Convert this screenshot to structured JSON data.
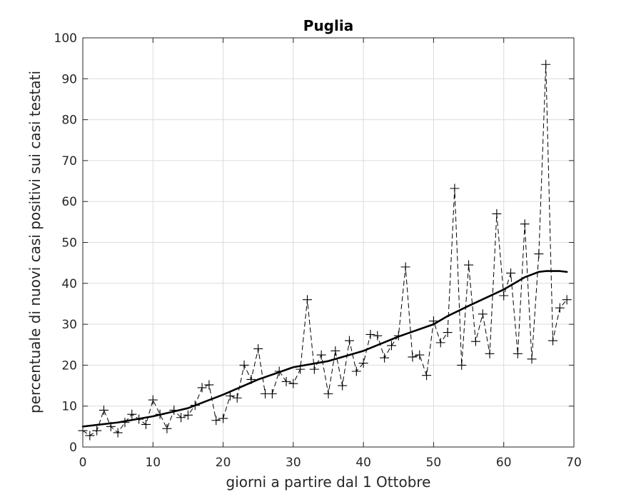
{
  "chart_data": {
    "type": "line",
    "title": "Puglia",
    "xlabel": "giorni a partire dal 1 Ottobre",
    "ylabel": "percentuale di nuovi casi positivi sui casi testati",
    "xlim": [
      0,
      70
    ],
    "ylim": [
      0,
      100
    ],
    "xticks": [
      0,
      10,
      20,
      30,
      40,
      50,
      60,
      70
    ],
    "yticks": [
      0,
      10,
      20,
      30,
      40,
      50,
      60,
      70,
      80,
      90,
      100
    ],
    "grid": true,
    "legend": "none",
    "series": [
      {
        "style": "dashed-with-plus-markers",
        "color": "#000000",
        "x": [
          0,
          1,
          2,
          3,
          4,
          5,
          6,
          7,
          8,
          9,
          10,
          11,
          12,
          13,
          14,
          15,
          16,
          17,
          18,
          19,
          20,
          21,
          22,
          23,
          24,
          25,
          26,
          27,
          28,
          29,
          30,
          31,
          32,
          33,
          34,
          35,
          36,
          37,
          38,
          39,
          40,
          41,
          42,
          43,
          44,
          45,
          46,
          47,
          48,
          49,
          50,
          51,
          52,
          53,
          54,
          55,
          56,
          57,
          58,
          59,
          60,
          61,
          62,
          63,
          64,
          65,
          66,
          67,
          68,
          69
        ],
        "y": [
          4,
          2.8,
          4,
          9,
          5,
          3.5,
          6,
          8,
          6.8,
          5.5,
          11.5,
          8,
          4.5,
          9,
          7.2,
          7.8,
          10.2,
          14.5,
          15.2,
          6.5,
          7,
          12.5,
          12,
          20,
          16.5,
          24,
          13,
          13,
          18.5,
          16,
          15.5,
          19,
          36,
          19,
          22.5,
          13,
          23.5,
          15,
          26,
          18.5,
          20.5,
          27.5,
          27.2,
          21.8,
          24.8,
          27.2,
          44,
          22,
          22.5,
          17.5,
          30.8,
          25.5,
          28,
          63.2,
          20,
          44.5,
          25.8,
          32.5,
          22.8,
          57,
          37,
          42.5,
          22.8,
          54.5,
          21.5,
          47.2,
          93.5,
          26,
          34,
          36
        ]
      },
      {
        "style": "solid",
        "color": "#000000",
        "x": [
          0,
          5,
          10,
          15,
          20,
          25,
          30,
          35,
          40,
          45,
          50,
          52,
          55,
          60,
          63,
          65,
          66,
          67,
          68,
          69
        ],
        "y": [
          5,
          6,
          7.5,
          9.5,
          12.8,
          16.5,
          19.5,
          21,
          23.5,
          27,
          30,
          32,
          34.5,
          38.5,
          41.5,
          42.8,
          43,
          43,
          43,
          42.8
        ]
      }
    ]
  }
}
